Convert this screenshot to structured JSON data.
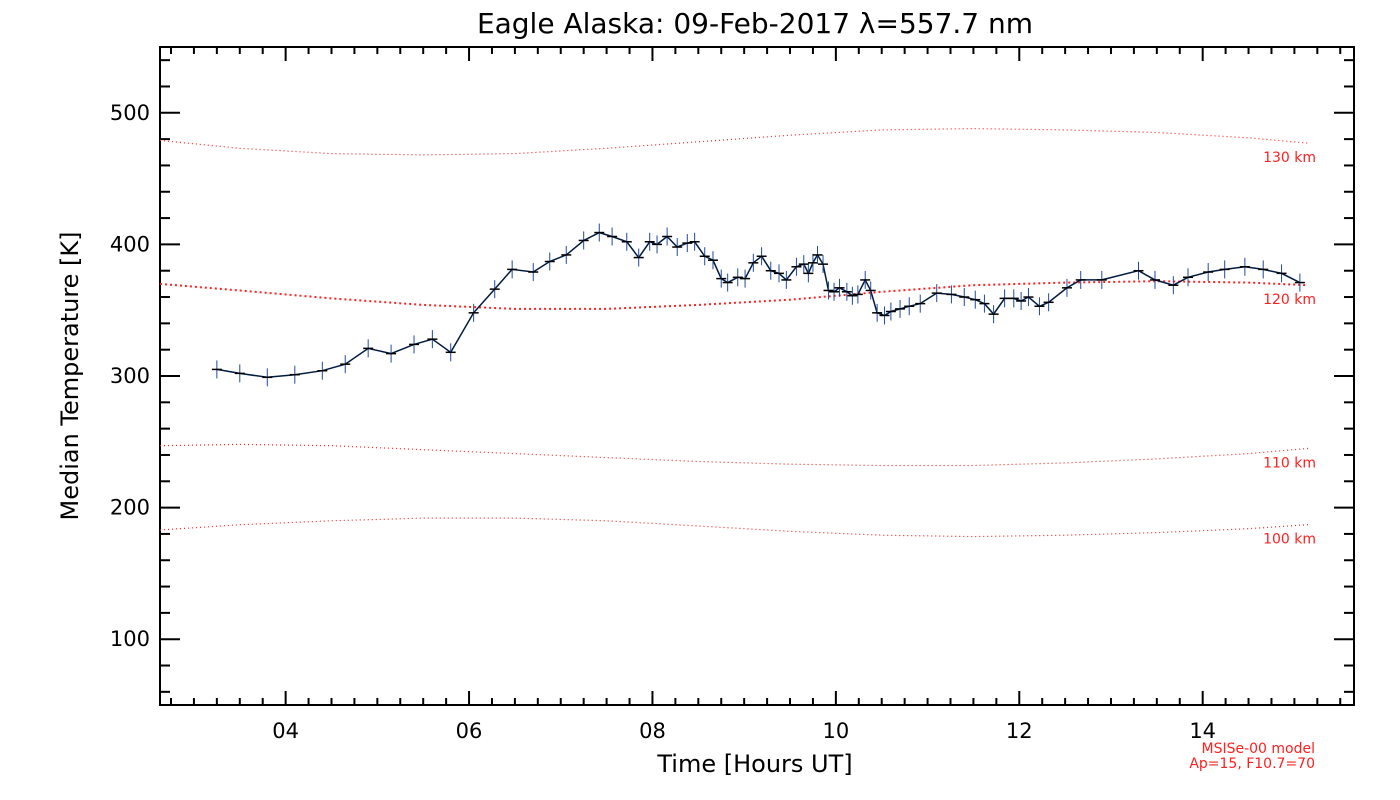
{
  "chart_data": {
    "type": "line",
    "title": "Eagle Alaska: 09-Feb-2017 λ=557.7 nm",
    "xlabel": "Time [Hours UT]",
    "ylabel": "Median Temperature [K]",
    "xlim": [
      2.63,
      15.65
    ],
    "ylim": [
      50,
      550
    ],
    "x_ticks": [
      4,
      6,
      8,
      10,
      12,
      14
    ],
    "x_tick_labels": [
      "04",
      "06",
      "08",
      "10",
      "12",
      "14"
    ],
    "y_ticks": [
      100,
      200,
      300,
      400,
      500
    ],
    "y_tick_labels": [
      "100",
      "200",
      "300",
      "400",
      "500"
    ],
    "grid": false,
    "series": [
      {
        "color": "#001a40",
        "marker": "+",
        "error_bars": true,
        "x": [
          3.25,
          3.5,
          3.8,
          4.1,
          4.4,
          4.65,
          4.9,
          5.15,
          5.4,
          5.6,
          5.8,
          6.05,
          6.28,
          6.47,
          6.7,
          6.88,
          7.06,
          7.25,
          7.42,
          7.56,
          7.72,
          7.85,
          7.97,
          8.05,
          8.16,
          8.27,
          8.38,
          8.46,
          8.57,
          8.66,
          8.75,
          8.82,
          8.93,
          9.01,
          9.1,
          9.19,
          9.29,
          9.38,
          9.46,
          9.57,
          9.65,
          9.7,
          9.75,
          9.8,
          9.86,
          9.92,
          9.98,
          10.04,
          10.12,
          10.18,
          10.24,
          10.32,
          10.38,
          10.45,
          10.53,
          10.6,
          10.7,
          10.8,
          10.92,
          11.1,
          11.26,
          11.4,
          11.52,
          11.62,
          11.72,
          11.84,
          11.94,
          12.02,
          12.1,
          12.22,
          12.32,
          12.52,
          12.67,
          12.9,
          13.3,
          13.48,
          13.68,
          13.84,
          14.06,
          14.24,
          14.46,
          14.66,
          14.86,
          15.06
        ],
        "y": [
          305,
          302,
          299,
          301,
          304,
          309,
          321,
          317,
          324,
          328,
          318,
          348,
          366,
          381,
          379,
          387,
          392,
          403,
          409,
          406,
          402,
          390,
          402,
          400,
          406,
          398,
          401,
          402,
          391,
          388,
          374,
          371,
          375,
          374,
          386,
          391,
          380,
          378,
          373,
          383,
          385,
          378,
          386,
          392,
          385,
          365,
          364,
          367,
          364,
          361,
          362,
          373,
          365,
          348,
          346,
          349,
          351,
          353,
          355,
          363,
          362,
          360,
          358,
          355,
          347,
          359,
          359,
          357,
          360,
          353,
          356,
          367,
          373,
          373,
          380,
          373,
          369,
          375,
          379,
          381,
          383,
          381,
          378,
          371
        ]
      }
    ],
    "model_curves": [
      {
        "label": "130 km",
        "color": "#ff2020",
        "x": [
          2.63,
          3.5,
          4.5,
          5.5,
          6.5,
          7.5,
          8.5,
          9.5,
          10.5,
          11.5,
          12.5,
          13.5,
          14.5,
          15.15
        ],
        "y": [
          479,
          473,
          469,
          468,
          469,
          473,
          478,
          483,
          487,
          488,
          487,
          485,
          481,
          477
        ]
      },
      {
        "label": "120 km",
        "color": "#ff2020",
        "x": [
          2.63,
          3.5,
          4.5,
          5.5,
          6.5,
          7.5,
          8.5,
          9.5,
          10.5,
          11.5,
          12.5,
          13.5,
          14.5,
          15.15
        ],
        "y": [
          370,
          365,
          359,
          354,
          351,
          351,
          354,
          358,
          364,
          369,
          371,
          372,
          371,
          369
        ]
      },
      {
        "label": "110 km",
        "color": "#ff2020",
        "x": [
          2.63,
          3.5,
          4.5,
          5.5,
          6.5,
          7.5,
          8.5,
          9.5,
          10.5,
          11.5,
          12.5,
          13.5,
          14.5,
          15.15
        ],
        "y": [
          247,
          248,
          247,
          244,
          241,
          238,
          235,
          233,
          232,
          232,
          234,
          237,
          241,
          245
        ]
      },
      {
        "label": "100 km",
        "color": "#ff2020",
        "x": [
          2.63,
          3.5,
          4.5,
          5.5,
          6.5,
          7.5,
          8.5,
          9.5,
          10.5,
          11.5,
          12.5,
          13.5,
          14.5,
          15.15
        ],
        "y": [
          183,
          187,
          190,
          192,
          192,
          190,
          186,
          182,
          179,
          178,
          179,
          181,
          184,
          187
        ]
      }
    ],
    "model_note": [
      "MSISe-00 model",
      "Ap=15, F10.7=70"
    ]
  }
}
